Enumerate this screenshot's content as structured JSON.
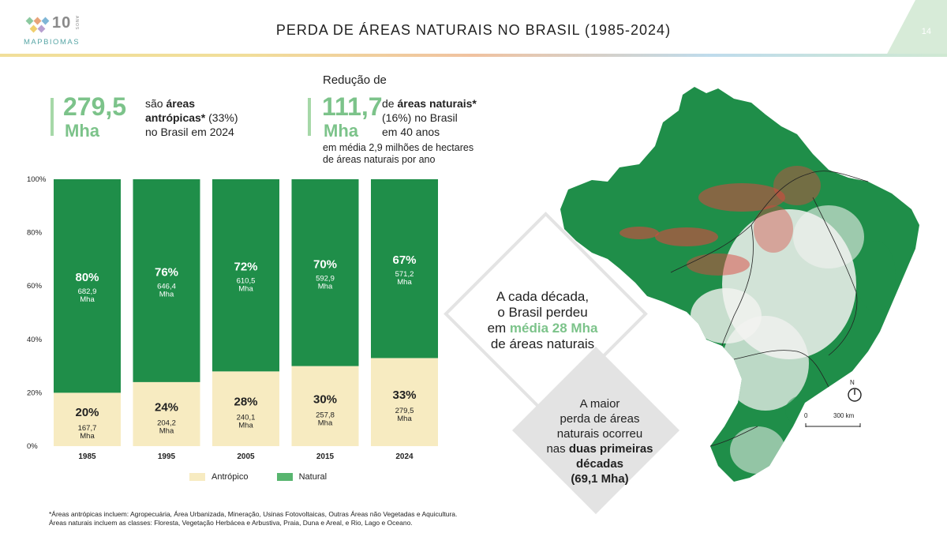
{
  "header": {
    "logo_ten": "10",
    "logo_anos": "ANOS",
    "logo_name": "MAPBIOMAS",
    "title": "PERDA DE ÁREAS NATURAIS NO BRASIL (1985-2024)",
    "page_number": "14"
  },
  "stat_antropic": {
    "value": "279,5",
    "unit": "Mha",
    "line1_pre": "são ",
    "line1_bold": "áreas",
    "line2_bold": "antrópicas*",
    "line2_rest": " (33%)",
    "line3": "no Brasil em 2024"
  },
  "stat_reduction": {
    "heading": "Redução de",
    "value": "111,7",
    "unit": "Mha",
    "line1_pre": "de ",
    "line1_bold": "áreas naturais*",
    "line2": "(16%) no Brasil",
    "line3": "em 40 anos",
    "note1": "em média 2,9 milhões de hectares",
    "note2": "de áreas naturais por ano"
  },
  "chart_data": {
    "type": "bar",
    "stacked": true,
    "categories": [
      "1985",
      "1995",
      "2005",
      "2015",
      "2024"
    ],
    "series": [
      {
        "name": "Antrópico",
        "color": "#f7ebc1",
        "percent": [
          20,
          24,
          28,
          30,
          33
        ],
        "mha": [
          "167,7",
          "204,2",
          "240,1",
          "257,8",
          "279,5"
        ]
      },
      {
        "name": "Natural",
        "color": "#1f8e49",
        "percent": [
          80,
          76,
          72,
          70,
          67
        ],
        "mha": [
          "682,9",
          "646,4",
          "610,5",
          "592,9",
          "571,2"
        ]
      }
    ],
    "percent_labels": {
      "Antrópico": [
        "20%",
        "24%",
        "28%",
        "30%",
        "33%"
      ],
      "Natural": [
        "80%",
        "76%",
        "72%",
        "70%",
        "67%"
      ]
    },
    "mha_unit": "Mha",
    "yticks": [
      "0%",
      "20%",
      "40%",
      "60%",
      "80%",
      "100%"
    ],
    "ylim": [
      0,
      100
    ]
  },
  "legend": {
    "antropic": "Antrópico",
    "natural": "Natural"
  },
  "callout_decade": {
    "line1": "A cada década,",
    "line2": "o Brasil perdeu",
    "line3_pre": "em ",
    "line3_hl": "média 28 Mha",
    "line4": "de áreas naturais"
  },
  "callout_largest": {
    "line1": "A maior",
    "line2": "perda de áreas",
    "line3": "naturais ocorreu",
    "line4_pre": "nas ",
    "line4_bold": "duas primeiras",
    "line5_bold": "décadas",
    "line6_bold": "(69,1 Mha)"
  },
  "map": {
    "compass_label": "N",
    "scale_start": "0",
    "scale_end": "300 km",
    "colors": {
      "natural": "#1f8e49",
      "loss": "#d9473f",
      "anthropic": "#f4f4f4"
    }
  },
  "footnote": {
    "line1": "*Áreas antrópicas incluem: Agropecuária, Área Urbanizada, Mineração, Usinas Fotovoltaicas, Outras Áreas não Vegetadas e Aquicultura.",
    "line2": "Áreas naturais incluem as classes: Floresta, Vegetação Herbácea e Arbustiva, Praia, Duna e Areal, e Rio, Lago e Oceano."
  }
}
